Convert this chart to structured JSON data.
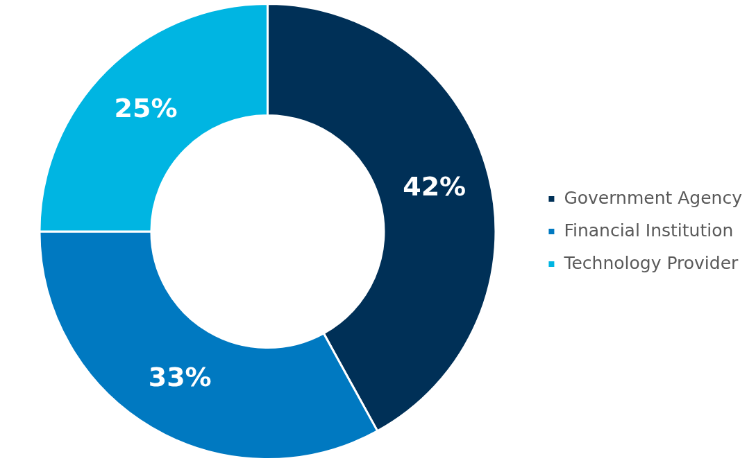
{
  "chart_data": {
    "type": "donut",
    "categories": [
      "Government Agency",
      "Financial Institution",
      "Technology Provider"
    ],
    "values": [
      42,
      33,
      25
    ],
    "colors": [
      "#003057",
      "#0079c1",
      "#00b5e2"
    ],
    "value_labels": [
      "42%",
      "33%",
      "25%"
    ],
    "legend": "right"
  }
}
